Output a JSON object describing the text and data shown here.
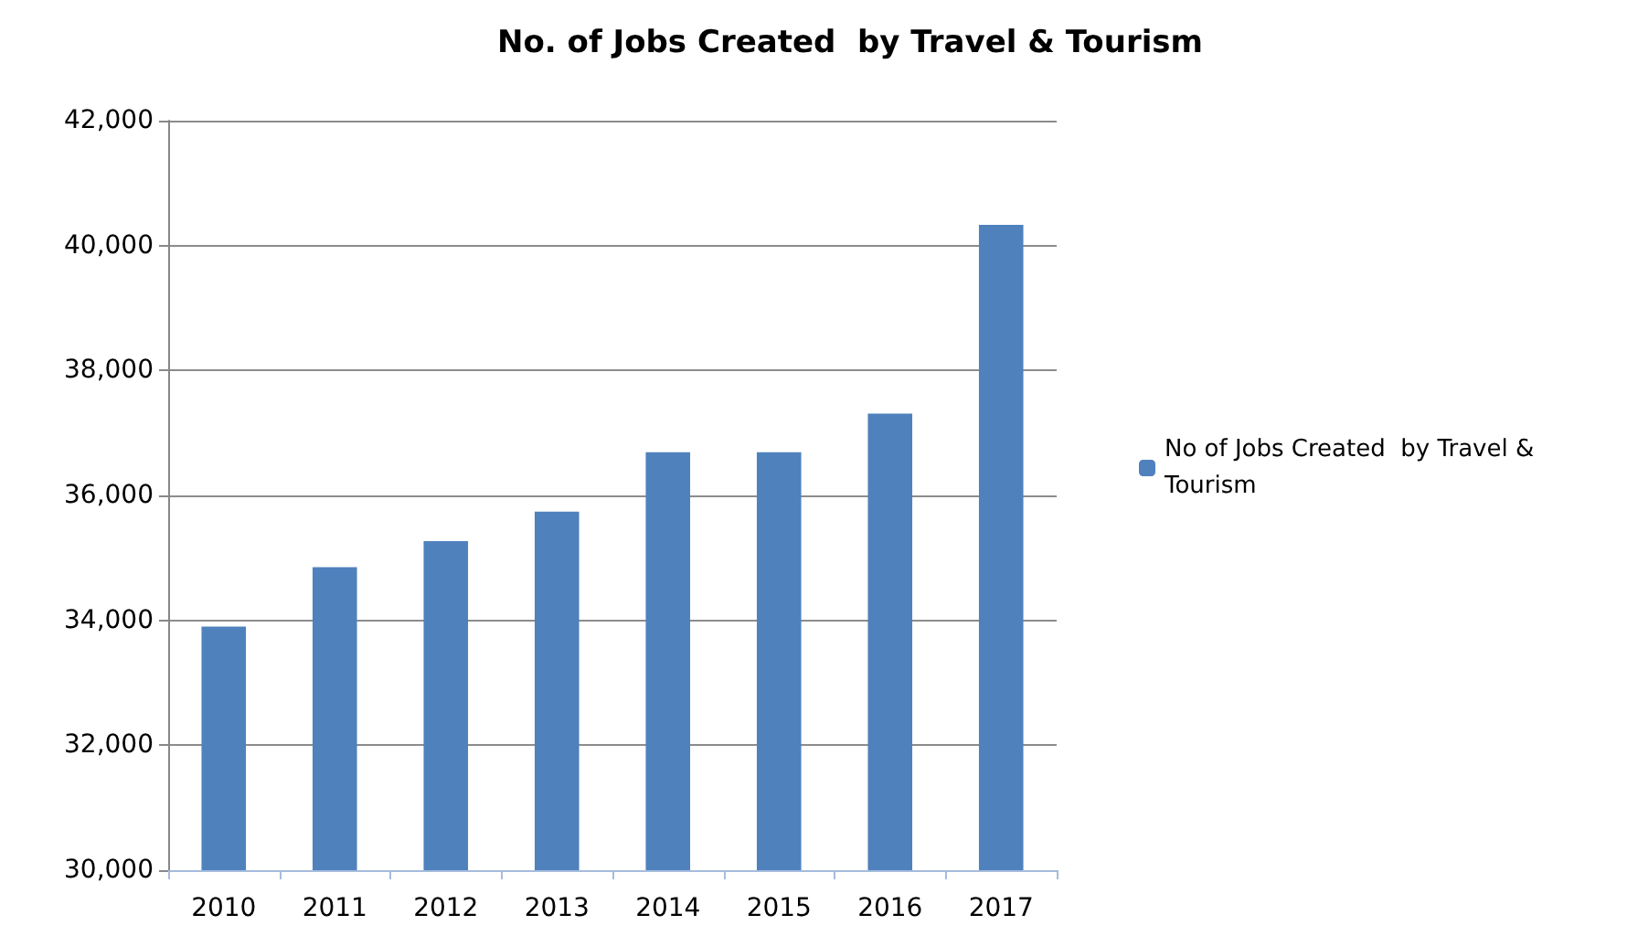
{
  "chart_data": {
    "type": "bar",
    "title": "No. of Jobs Created  by Travel & Tourism",
    "categories": [
      "2010",
      "2011",
      "2012",
      "2013",
      "2014",
      "2015",
      "2016",
      "2017"
    ],
    "series": [
      {
        "name": "No of Jobs Created  by Travel & Tourism",
        "color": "#4f81bd",
        "values": [
          33900,
          34850,
          35270,
          35740,
          36690,
          36690,
          37310,
          40330
        ]
      }
    ],
    "ylim": [
      30000,
      42000
    ],
    "yticks": [
      {
        "value": 30000,
        "label": "30,000"
      },
      {
        "value": 32000,
        "label": "32,000"
      },
      {
        "value": 34000,
        "label": "34,000"
      },
      {
        "value": 36000,
        "label": "36,000"
      },
      {
        "value": 38000,
        "label": "38,000"
      },
      {
        "value": 40000,
        "label": "40,000"
      },
      {
        "value": 42000,
        "label": "42,000"
      }
    ],
    "grid": "y",
    "legend": "right"
  }
}
